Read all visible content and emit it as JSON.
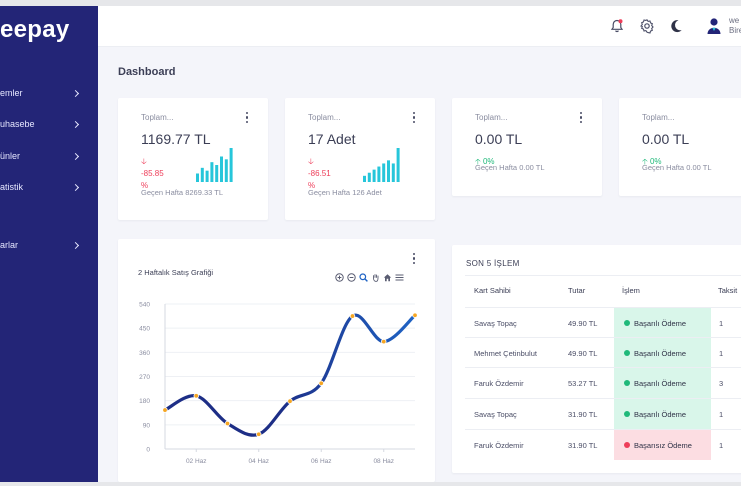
{
  "brand": {
    "logo_text": "eepay"
  },
  "sidebar": {
    "items": [
      {
        "label": "emler"
      },
      {
        "label": "uhasebe"
      },
      {
        "label": "ünler"
      },
      {
        "label": "atistik"
      },
      {
        "label": ""
      },
      {
        "label": "arlar"
      }
    ]
  },
  "header": {
    "user_line1": "we",
    "user_line2": "Bire"
  },
  "page": {
    "title": "Dashboard"
  },
  "stats": [
    {
      "label": "Toplam...",
      "value": "1169.77 TL",
      "change_line1": "-85.85",
      "change_line2": "%",
      "direction": "down",
      "previous": "Geçen Hafta 8269.33 TL",
      "bars": [
        3,
        5,
        4,
        7,
        6,
        9,
        8,
        12
      ]
    },
    {
      "label": "Toplam...",
      "value": "17 Adet",
      "change_line1": "-86.51",
      "change_line2": "%",
      "direction": "down",
      "previous": "Geçen Hafta 126 Adet",
      "bars": [
        2,
        3,
        4,
        5,
        6,
        7,
        6,
        11
      ]
    },
    {
      "label": "Toplam...",
      "value": "0.00 TL",
      "change_line1": "0%",
      "change_line2": "",
      "direction": "up",
      "previous": "Geçen Hafta 0.00 TL"
    },
    {
      "label": "Toplam...",
      "value": "0.00 TL",
      "change_line1": "0%",
      "change_line2": "",
      "direction": "up",
      "previous": "Geçen Hafta 0.00 TL"
    }
  ],
  "chart_data": {
    "type": "line",
    "title": "2 Haftalık Satış Grafiği",
    "xlabel": "",
    "ylabel": "",
    "x_ticks": [
      "02 Haz",
      "04 Haz",
      "06 Haz",
      "08 Haz"
    ],
    "y_ticks": [
      "540",
      "450",
      "360",
      "270",
      "180",
      "90",
      "0"
    ],
    "ylim": [
      0,
      540
    ],
    "x": [
      "01 Haz",
      "02 Haz",
      "03 Haz",
      "04 Haz",
      "05 Haz",
      "06 Haz",
      "07 Haz",
      "08 Haz",
      "09 Haz"
    ],
    "values": [
      145,
      198,
      95,
      55,
      178,
      245,
      495,
      400,
      498
    ],
    "grid": true,
    "colors": {
      "line": "#1f63c4",
      "line_dark": "#1d2e86",
      "marker": "#f5a623"
    }
  },
  "table": {
    "title": "SON 5 İŞLEM",
    "headers": [
      "Kart Sahibi",
      "Tutar",
      "İşlem",
      "Taksit"
    ],
    "rows": [
      {
        "name": "Savaş Topaç",
        "amount": "49.90 TL",
        "status": "Başarılı Ödeme",
        "ok": true,
        "taksit": "1"
      },
      {
        "name": "Mehmet Çetinbulut",
        "amount": "49.90 TL",
        "status": "Başarılı Ödeme",
        "ok": true,
        "taksit": "1"
      },
      {
        "name": "Faruk Özdemir",
        "amount": "53.27 TL",
        "status": "Başarılı Ödeme",
        "ok": true,
        "taksit": "3"
      },
      {
        "name": "Savaş Topaç",
        "amount": "31.90 TL",
        "status": "Başarılı Ödeme",
        "ok": true,
        "taksit": "1"
      },
      {
        "name": "Faruk Özdemir",
        "amount": "31.90 TL",
        "status": "Başarısız Ödeme",
        "ok": false,
        "taksit": "1"
      }
    ]
  },
  "icons": [
    "bell-icon",
    "gear-icon",
    "moon-icon",
    "user-avatar-icon",
    "kebab-menu-icon",
    "zoom-in-icon",
    "zoom-out-icon",
    "zoom-select-icon",
    "pan-hand-icon",
    "home-reset-icon",
    "menu-icon"
  ]
}
